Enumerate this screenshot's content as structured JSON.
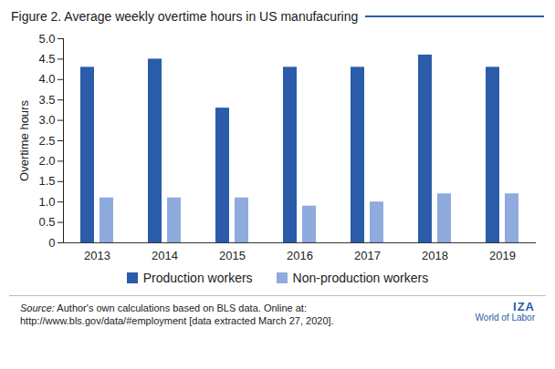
{
  "chart_data": {
    "type": "bar",
    "title": "Figure 2. Average weekly overtime hours in US manufacuring",
    "y_label": "Overtime hours",
    "categories": [
      "2013",
      "2014",
      "2015",
      "2016",
      "2017",
      "2018",
      "2019"
    ],
    "series": [
      {
        "name": "Production workers",
        "color": "#2a5caa",
        "values": [
          4.3,
          4.5,
          3.3,
          4.3,
          4.3,
          4.6,
          4.3
        ]
      },
      {
        "name": "Non-production workers",
        "color": "#8faadc",
        "values": [
          1.1,
          1.1,
          1.1,
          0.9,
          1.0,
          1.2,
          1.2
        ]
      }
    ],
    "ylim": [
      0,
      5
    ],
    "yticks": [
      0,
      0.5,
      {
        "value": 1,
        "label": "1.0"
      },
      1.5,
      {
        "value": 2,
        "label": "2.0"
      },
      2.5,
      {
        "value": 3,
        "label": "3.0"
      },
      3.5,
      {
        "value": 4,
        "label": "4.0"
      },
      4.5,
      {
        "value": 5,
        "label": "5.0"
      }
    ],
    "grid": false,
    "legend": "bottom",
    "source_label": "Source:",
    "source": "Author's own calculations based on BLS data. Online at: http://www.bls.gov/data/#employment [data extracted March 27, 2020].",
    "logo": "IZA",
    "logo_subtitle": "World of Labor"
  }
}
